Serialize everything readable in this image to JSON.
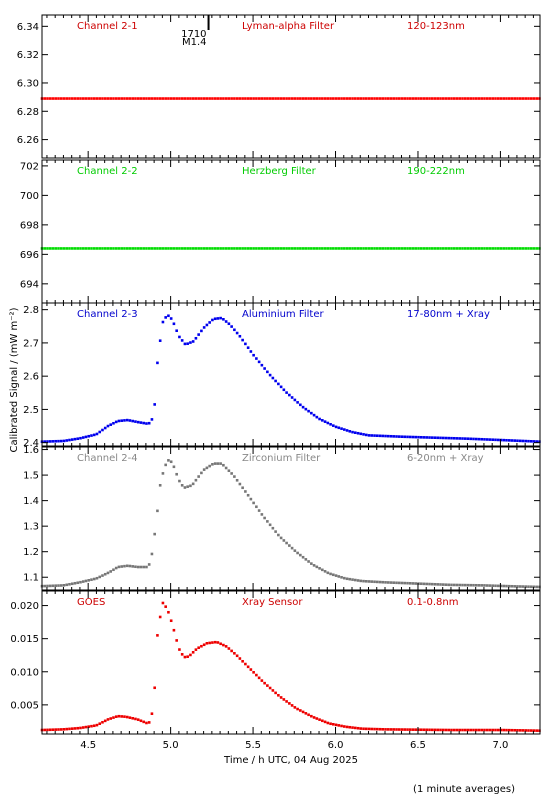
{
  "footer_note": "(1 minute averages)",
  "chart_data": {
    "type": "scatter",
    "shared_x": {
      "label": "Time / h UTC, 04 Aug 2025",
      "range": [
        4.22,
        7.24
      ],
      "ticks": [
        4.5,
        5.0,
        5.5,
        6.0,
        6.5,
        7.0
      ],
      "tick_labels": [
        "4.5",
        "5.0",
        "5.5",
        "6.0",
        "6.5",
        "7.0"
      ]
    },
    "shared_ylabel": "Calibrated Signal / (mW m⁻²)",
    "event_marker": {
      "x": 5.23,
      "label_time": "1710",
      "label_class": "M1.4"
    },
    "panels": [
      {
        "channel": "Channel 2-1",
        "filter": "Lyman-alpha Filter",
        "band": "120-123nm",
        "color": "#ff0000",
        "label_color": "#cc0000",
        "ylim": [
          6.247,
          6.348
        ],
        "yticks": [
          6.26,
          6.28,
          6.3,
          6.32,
          6.34
        ],
        "ytick_labels": [
          "6.26",
          "6.28",
          "6.30",
          "6.32",
          "6.34"
        ],
        "profile": "flat",
        "level": 6.289
      },
      {
        "channel": "Channel 2-2",
        "filter": "Herzberg Filter",
        "band": "190-222nm",
        "color": "#00dd00",
        "label_color": "#00cc00",
        "ylim": [
          692.7,
          702.4
        ],
        "yticks": [
          694,
          696,
          698,
          700,
          702
        ],
        "ytick_labels": [
          "694",
          "696",
          "698",
          "700",
          "702"
        ],
        "profile": "flat",
        "level": 696.4
      },
      {
        "channel": "Channel 2-3",
        "filter": "Aluminium Filter",
        "band": "17-80nm + Xray",
        "color": "#0000ee",
        "label_color": "#0000cc",
        "ylim": [
          2.39,
          2.82
        ],
        "yticks": [
          2.4,
          2.5,
          2.6,
          2.7,
          2.8
        ],
        "ytick_labels": [
          "2.4",
          "2.5",
          "2.6",
          "2.7",
          "2.8"
        ],
        "profile": "flare",
        "curve": [
          [
            4.22,
            2.403
          ],
          [
            4.35,
            2.405
          ],
          [
            4.45,
            2.413
          ],
          [
            4.55,
            2.425
          ],
          [
            4.62,
            2.45
          ],
          [
            4.68,
            2.465
          ],
          [
            4.74,
            2.468
          ],
          [
            4.8,
            2.462
          ],
          [
            4.86,
            2.457
          ],
          [
            4.88,
            2.46
          ],
          [
            4.9,
            2.49
          ],
          [
            4.92,
            2.64
          ],
          [
            4.95,
            2.76
          ],
          [
            4.98,
            2.785
          ],
          [
            5.01,
            2.77
          ],
          [
            5.05,
            2.72
          ],
          [
            5.09,
            2.695
          ],
          [
            5.14,
            2.705
          ],
          [
            5.2,
            2.745
          ],
          [
            5.26,
            2.772
          ],
          [
            5.31,
            2.775
          ],
          [
            5.36,
            2.755
          ],
          [
            5.42,
            2.72
          ],
          [
            5.5,
            2.665
          ],
          [
            5.6,
            2.605
          ],
          [
            5.7,
            2.552
          ],
          [
            5.8,
            2.508
          ],
          [
            5.9,
            2.472
          ],
          [
            6.0,
            2.448
          ],
          [
            6.1,
            2.432
          ],
          [
            6.2,
            2.422
          ],
          [
            6.4,
            2.418
          ],
          [
            6.6,
            2.415
          ],
          [
            6.8,
            2.412
          ],
          [
            7.0,
            2.408
          ],
          [
            7.24,
            2.403
          ]
        ]
      },
      {
        "channel": "Channel 2-4",
        "filter": "Zirconium Filter",
        "band": "6-20nm + Xray",
        "color": "#777777",
        "label_color": "#888888",
        "ylim": [
          1.05,
          1.61
        ],
        "yticks": [
          1.1,
          1.2,
          1.3,
          1.4,
          1.5,
          1.6
        ],
        "ytick_labels": [
          "1.1",
          "1.2",
          "1.3",
          "1.4",
          "1.5",
          "1.6"
        ],
        "profile": "flare",
        "curve": [
          [
            4.22,
            1.065
          ],
          [
            4.35,
            1.068
          ],
          [
            4.45,
            1.08
          ],
          [
            4.55,
            1.095
          ],
          [
            4.63,
            1.12
          ],
          [
            4.68,
            1.14
          ],
          [
            4.74,
            1.145
          ],
          [
            4.8,
            1.14
          ],
          [
            4.86,
            1.14
          ],
          [
            4.88,
            1.16
          ],
          [
            4.91,
            1.3
          ],
          [
            4.94,
            1.48
          ],
          [
            4.98,
            1.56
          ],
          [
            5.01,
            1.55
          ],
          [
            5.05,
            1.48
          ],
          [
            5.08,
            1.45
          ],
          [
            5.13,
            1.46
          ],
          [
            5.2,
            1.52
          ],
          [
            5.26,
            1.545
          ],
          [
            5.31,
            1.545
          ],
          [
            5.38,
            1.5
          ],
          [
            5.46,
            1.43
          ],
          [
            5.56,
            1.34
          ],
          [
            5.66,
            1.26
          ],
          [
            5.76,
            1.2
          ],
          [
            5.86,
            1.15
          ],
          [
            5.96,
            1.115
          ],
          [
            6.06,
            1.095
          ],
          [
            6.16,
            1.085
          ],
          [
            6.3,
            1.08
          ],
          [
            6.5,
            1.075
          ],
          [
            6.7,
            1.07
          ],
          [
            6.9,
            1.068
          ],
          [
            7.1,
            1.064
          ],
          [
            7.24,
            1.062
          ]
        ]
      },
      {
        "channel": "GOES",
        "filter": "Xray Sensor",
        "band": "0.1-0.8nm",
        "color": "#ee0000",
        "label_color": "#cc0000",
        "ylim": [
          0.0006,
          0.0222
        ],
        "yticks": [
          0.005,
          0.01,
          0.015,
          0.02
        ],
        "ytick_labels": [
          "0.005",
          "0.010",
          "0.015",
          "0.020"
        ],
        "profile": "flare",
        "curve": [
          [
            4.22,
            0.0012
          ],
          [
            4.35,
            0.0013
          ],
          [
            4.45,
            0.0015
          ],
          [
            4.55,
            0.0019
          ],
          [
            4.62,
            0.0028
          ],
          [
            4.68,
            0.0033
          ],
          [
            4.73,
            0.0032
          ],
          [
            4.8,
            0.0028
          ],
          [
            4.86,
            0.0022
          ],
          [
            4.88,
            0.0025
          ],
          [
            4.9,
            0.006
          ],
          [
            4.92,
            0.0155
          ],
          [
            4.95,
            0.0205
          ],
          [
            4.98,
            0.0195
          ],
          [
            5.01,
            0.0172
          ],
          [
            5.05,
            0.0135
          ],
          [
            5.08,
            0.0122
          ],
          [
            5.11,
            0.0123
          ],
          [
            5.16,
            0.0135
          ],
          [
            5.22,
            0.0143
          ],
          [
            5.28,
            0.0145
          ],
          [
            5.34,
            0.0138
          ],
          [
            5.4,
            0.0125
          ],
          [
            5.48,
            0.0105
          ],
          [
            5.56,
            0.0085
          ],
          [
            5.66,
            0.0063
          ],
          [
            5.76,
            0.0045
          ],
          [
            5.86,
            0.0032
          ],
          [
            5.96,
            0.0022
          ],
          [
            6.06,
            0.0017
          ],
          [
            6.16,
            0.0014
          ],
          [
            6.3,
            0.0013
          ],
          [
            6.5,
            0.00125
          ],
          [
            6.7,
            0.0012
          ],
          [
            7.0,
            0.0012
          ],
          [
            7.24,
            0.0011
          ]
        ]
      }
    ]
  }
}
